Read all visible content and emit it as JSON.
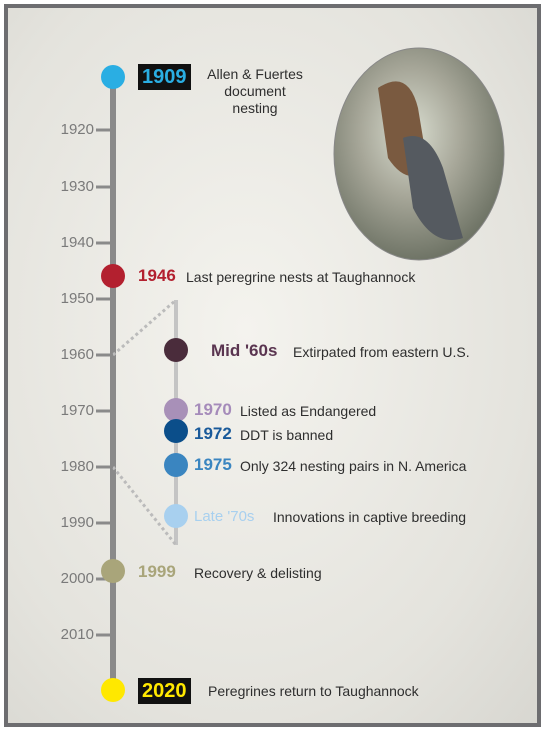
{
  "axis": {
    "ticks": [
      "1920",
      "1930",
      "1940",
      "1950",
      "1960",
      "1970",
      "1980",
      "1990",
      "2000",
      "2010"
    ]
  },
  "events": [
    {
      "year": "1909",
      "label": "Allen & Fuertes document nesting"
    },
    {
      "year": "1946",
      "label": "Last peregrine nests at Taughannock"
    },
    {
      "year": "Mid '60s",
      "label": "Extirpated from eastern U.S."
    },
    {
      "year": "1970",
      "label": "Listed as Endangered"
    },
    {
      "year": "1972",
      "label": "DDT is banned"
    },
    {
      "year": "1975",
      "label": "Only 324 nesting pairs in N. America"
    },
    {
      "year": "Late '70s",
      "label": "Innovations in captive breeding"
    },
    {
      "year": "1999",
      "label": "Recovery & delisting"
    },
    {
      "year": "2020",
      "label": "Peregrines return to Taughannock"
    }
  ]
}
